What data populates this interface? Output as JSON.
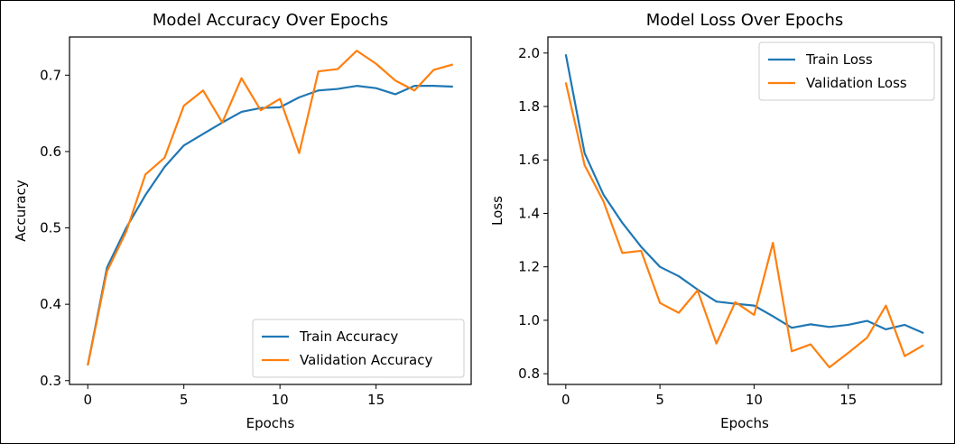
{
  "chart_data": [
    {
      "type": "line",
      "title": "Model Accuracy Over Epochs",
      "xlabel": "Epochs",
      "ylabel": "Accuracy",
      "xlim": [
        -0.95,
        19.95
      ],
      "ylim": [
        0.295,
        0.75
      ],
      "xticks": [
        0,
        5,
        10,
        15
      ],
      "yticks": [
        0.3,
        0.4,
        0.5,
        0.6,
        0.7
      ],
      "ytick_labels": [
        "0.3",
        "0.4",
        "0.5",
        "0.6",
        "0.7"
      ],
      "legend_position": "lower-right",
      "grid": false,
      "x": [
        0,
        1,
        2,
        3,
        4,
        5,
        6,
        7,
        8,
        9,
        10,
        11,
        12,
        13,
        14,
        15,
        16,
        17,
        18,
        19
      ],
      "series": [
        {
          "name": "Train Accuracy",
          "color": "#1f77b4",
          "values": [
            0.32,
            0.448,
            0.5,
            0.543,
            0.58,
            0.608,
            0.623,
            0.638,
            0.652,
            0.657,
            0.658,
            0.671,
            0.68,
            0.682,
            0.686,
            0.683,
            0.675,
            0.686,
            0.686,
            0.685
          ]
        },
        {
          "name": "Validation Accuracy",
          "color": "#ff7f0e",
          "values": [
            0.32,
            0.443,
            0.495,
            0.57,
            0.592,
            0.66,
            0.68,
            0.638,
            0.696,
            0.654,
            0.669,
            0.598,
            0.705,
            0.708,
            0.732,
            0.715,
            0.693,
            0.68,
            0.707,
            0.714
          ]
        }
      ]
    },
    {
      "type": "line",
      "title": "Model Loss Over Epochs",
      "xlabel": "Epochs",
      "ylabel": "Loss",
      "xlim": [
        -0.95,
        19.95
      ],
      "ylim": [
        0.76,
        2.06
      ],
      "xticks": [
        0,
        5,
        10,
        15
      ],
      "yticks": [
        0.8,
        1.0,
        1.2,
        1.4,
        1.6,
        1.8,
        2.0
      ],
      "ytick_labels": [
        "0.8",
        "1.0",
        "1.2",
        "1.4",
        "1.6",
        "1.8",
        "2.0"
      ],
      "legend_position": "upper-right",
      "grid": false,
      "x": [
        0,
        1,
        2,
        3,
        4,
        5,
        6,
        7,
        8,
        9,
        10,
        11,
        12,
        13,
        14,
        15,
        16,
        17,
        18,
        19
      ],
      "series": [
        {
          "name": "Train Loss",
          "color": "#1f77b4",
          "values": [
            1.995,
            1.625,
            1.47,
            1.365,
            1.275,
            1.2,
            1.165,
            1.115,
            1.07,
            1.062,
            1.055,
            1.015,
            0.972,
            0.985,
            0.975,
            0.983,
            0.998,
            0.966,
            0.983,
            0.952
          ]
        },
        {
          "name": "Validation Loss",
          "color": "#ff7f0e",
          "values": [
            1.89,
            1.58,
            1.445,
            1.252,
            1.26,
            1.065,
            1.028,
            1.112,
            0.913,
            1.068,
            1.02,
            1.29,
            0.884,
            0.91,
            0.824,
            0.878,
            0.935,
            1.055,
            0.866,
            0.907
          ]
        }
      ]
    }
  ]
}
